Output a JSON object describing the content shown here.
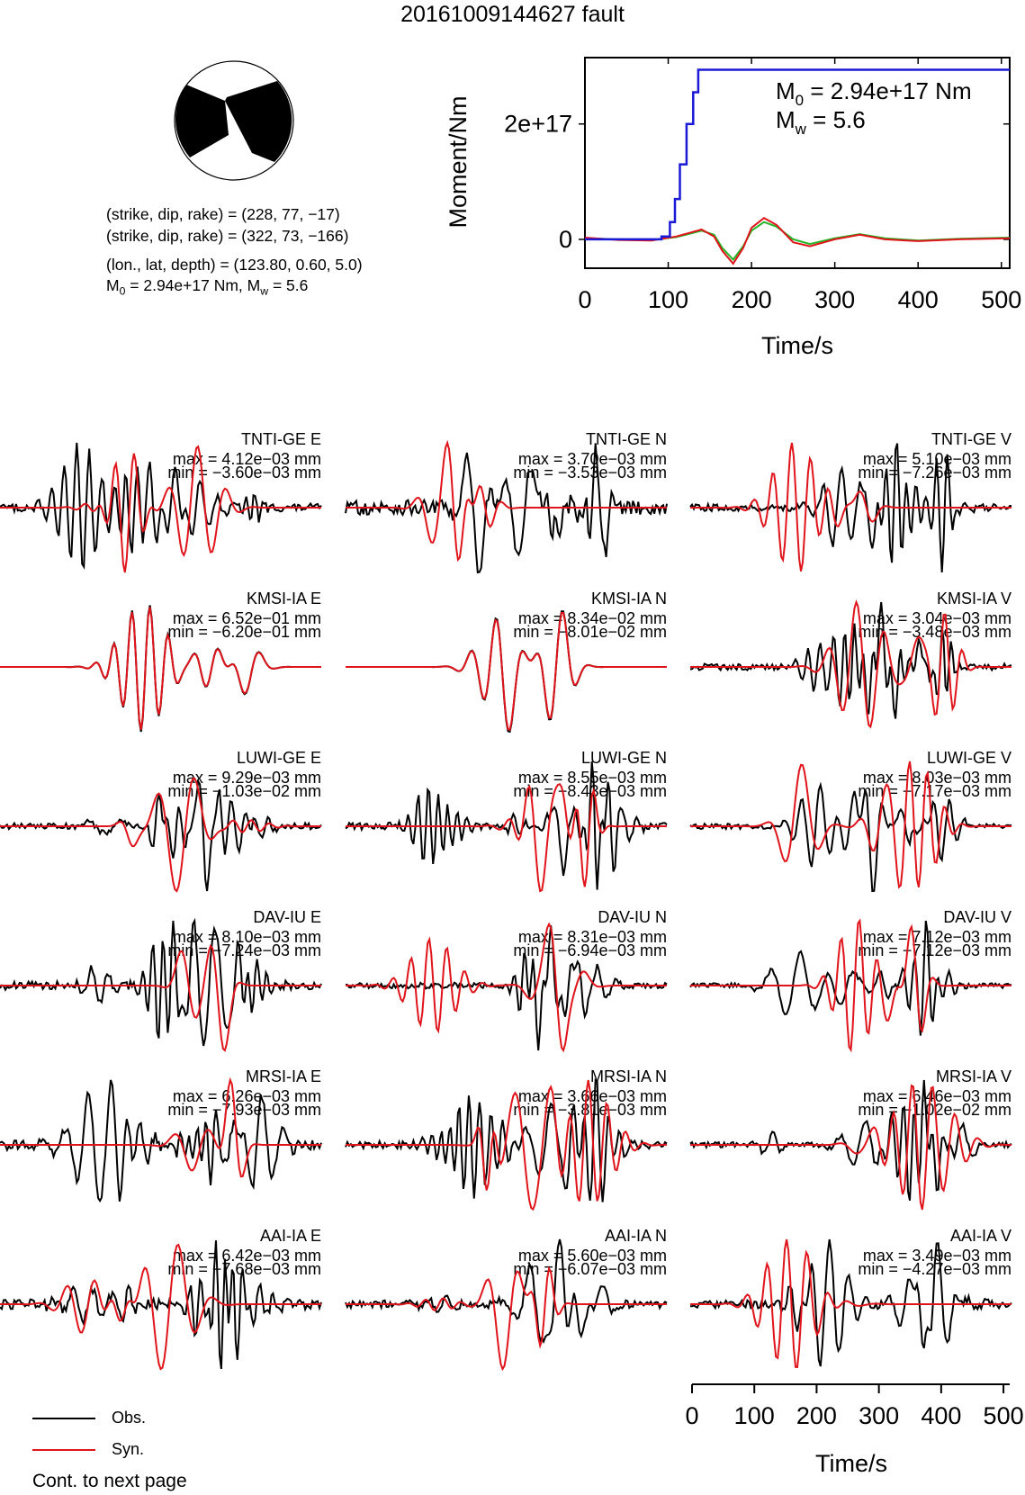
{
  "title": "20161009144627 fault",
  "mechanism": {
    "nodal_plane_1": "(strike, dip, rake) = (228, 77, −17)",
    "nodal_plane_2": "(strike, dip, rake) = (322, 73, −166)",
    "location": "(lon., lat, depth) = (123.80, 0.60, 5.0)",
    "m0_text": "2.94e+17 Nm",
    "mw_text": "5.6",
    "strike": 228,
    "dip": 77,
    "rake": -17
  },
  "chart_data": [
    {
      "type": "line",
      "title": "",
      "xlabel": "Time/s",
      "ylabel": "Moment/Nm",
      "xlim": [
        0,
        510
      ],
      "ylim": [
        -5e+16,
        3.15e+17
      ],
      "xticks": [
        "0",
        "100",
        "200",
        "300",
        "400",
        "500"
      ],
      "yticks": [
        "0",
        "2e+17"
      ],
      "annotation_m0": "2.94e+17 Nm",
      "annotation_mw": "5.6",
      "cumulative_moment_blue": {
        "x": [
          0,
          92,
          92,
          102,
          102,
          108,
          108,
          114,
          114,
          122,
          122,
          130,
          130,
          136,
          136,
          510
        ],
        "y": [
          0,
          0,
          5000000000000000.0,
          5000000000000000.0,
          3e+16,
          3e+16,
          7e+16,
          7e+16,
          1.3e+17,
          1.3e+17,
          2e+17,
          2e+17,
          2.55e+17,
          2.55e+17,
          2.94e+17,
          2.94e+17
        ]
      },
      "moment_rate_red": {
        "x": [
          0,
          40,
          80,
          110,
          140,
          155,
          165,
          178,
          190,
          200,
          215,
          230,
          250,
          270,
          300,
          330,
          360,
          400,
          450,
          510
        ],
        "y": [
          3000000000000000.0,
          -1000000000000000.0,
          -2000000000000000.0,
          5000000000000000.0,
          1.7e+16,
          5000000000000000.0,
          -2e+16,
          -4.2e+16,
          -1.5e+16,
          2e+16,
          3.7e+16,
          2.5e+16,
          -5000000000000000.0,
          -1.2e+16,
          0.0,
          8000000000000000.0,
          0.0,
          -3000000000000000.0,
          0.0,
          2000000000000000.0
        ]
      },
      "moment_rate_green": {
        "x": [
          0,
          40,
          80,
          110,
          140,
          155,
          165,
          178,
          190,
          200,
          215,
          230,
          250,
          270,
          300,
          330,
          360,
          400,
          450,
          510
        ],
        "y": [
          2000000000000000.0,
          0.0,
          -1000000000000000.0,
          4000000000000000.0,
          1.5e+16,
          8000000000000000.0,
          -1.5e+16,
          -3.5e+16,
          -1.2e+16,
          1.5e+16,
          3e+16,
          2.2e+16,
          0.0,
          -8000000000000000.0,
          2000000000000000.0,
          9000000000000000.0,
          2000000000000000.0,
          -2000000000000000.0,
          1000000000000000.0,
          3000000000000000.0
        ]
      }
    },
    {
      "type": "line",
      "title": "",
      "xlabel": "Time/s",
      "xlim": [
        0,
        510
      ],
      "xticks": [
        "0",
        "100",
        "200",
        "300",
        "400",
        "500"
      ],
      "legend": [
        "Obs.",
        "Syn."
      ],
      "stations": [
        {
          "label": "TNTI-GE E",
          "max": "max = 4.12e−03 mm",
          "min": "min = −3.60e−03 mm"
        },
        {
          "label": "TNTI-GE N",
          "max": "max = 3.70e−03 mm",
          "min": "min = −3.53e−03 mm"
        },
        {
          "label": "TNTI-GE V",
          "max": "max = 5.10e−03 mm",
          "min": "min = −7.26e−03 mm"
        },
        {
          "label": "KMSI-IA E",
          "max": "max = 6.52e−01 mm",
          "min": "min = −6.20e−01 mm"
        },
        {
          "label": "KMSI-IA N",
          "max": "max = 8.34e−02 mm",
          "min": "min = −8.01e−02 mm"
        },
        {
          "label": "KMSI-IA V",
          "max": "max = 3.04e−03 mm",
          "min": "min = −3.48e−03 mm"
        },
        {
          "label": "LUWI-GE E",
          "max": "max = 9.29e−03 mm",
          "min": "min = −1.03e−02 mm"
        },
        {
          "label": "LUWI-GE N",
          "max": "max = 8.55e−03 mm",
          "min": "min = −8.43e−03 mm"
        },
        {
          "label": "LUWI-GE V",
          "max": "max = 8.03e−03 mm",
          "min": "min = −7.17e−03 mm"
        },
        {
          "label": "DAV-IU E",
          "max": "max = 8.10e−03 mm",
          "min": "min = −7.24e−03 mm"
        },
        {
          "label": "DAV-IU N",
          "max": "max = 8.31e−03 mm",
          "min": "min = −6.94e−03 mm"
        },
        {
          "label": "DAV-IU V",
          "max": "max = 7.12e−03 mm",
          "min": "min = −7.12e−03 mm"
        },
        {
          "label": "MRSI-IA E",
          "max": "max = 6.26e−03 mm",
          "min": "min = −7.93e−03 mm"
        },
        {
          "label": "MRSI-IA N",
          "max": "max = 3.66e−03 mm",
          "min": "min = −3.81e−03 mm"
        },
        {
          "label": "MRSI-IA V",
          "max": "max = 6.46e−03 mm",
          "min": "min = −1.02e−02 mm"
        },
        {
          "label": "AAI-IA E",
          "max": "max = 6.42e−03 mm",
          "min": "min = −7.68e−03 mm"
        },
        {
          "label": "AAI-IA N",
          "max": "max = 5.60e−03 mm",
          "min": "min = −6.07e−03 mm"
        },
        {
          "label": "AAI-IA V",
          "max": "max = 3.49e−03 mm",
          "min": "min = −4.27e−03 mm"
        }
      ]
    }
  ],
  "colors": {
    "observed": "#000000",
    "synthetic": "#e0141b",
    "cumulative": "#1a1ad6",
    "alt_rate": "#23b523"
  },
  "legend": {
    "obs": "Obs.",
    "syn": "Syn."
  },
  "footer": "Cont. to next page"
}
